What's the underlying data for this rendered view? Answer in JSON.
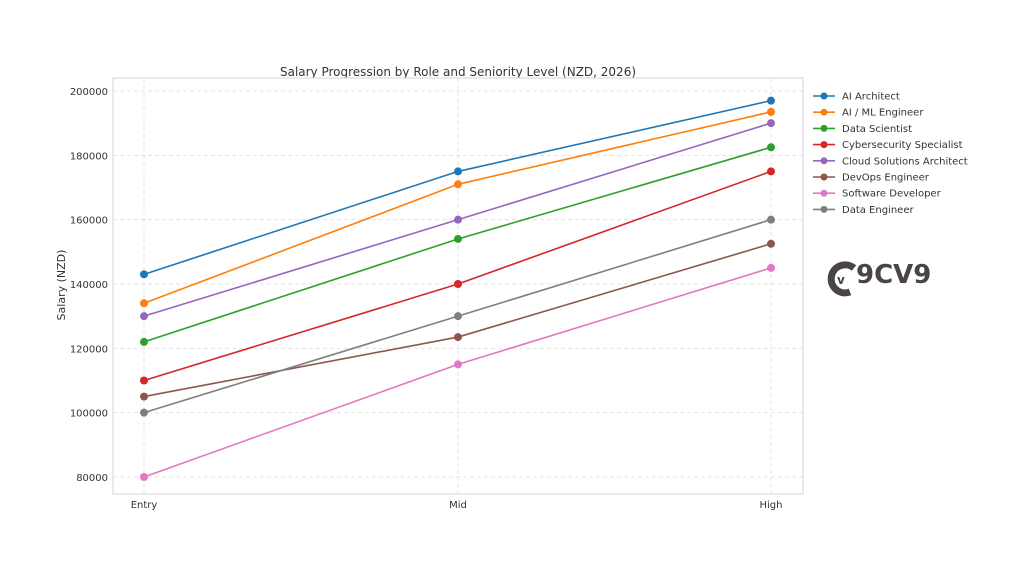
{
  "chart_data": {
    "type": "line",
    "title": "Salary Progression by Role and Seniority Level (NZD, 2026)",
    "xlabel": "",
    "ylabel": "Salary (NZD)",
    "categories": [
      "Entry",
      "Mid",
      "High"
    ],
    "ylim": [
      76000,
      202000
    ],
    "yticks": [
      80000,
      100000,
      120000,
      140000,
      160000,
      180000,
      200000
    ],
    "grid": true,
    "legend": "right",
    "series": [
      {
        "name": "AI Architect",
        "color": "#1f77b4",
        "values": [
          143000,
          175000,
          197000
        ]
      },
      {
        "name": "AI / ML Engineer",
        "color": "#ff7f0e",
        "values": [
          134000,
          171000,
          193500
        ]
      },
      {
        "name": "Data Scientist",
        "color": "#2ca02c",
        "values": [
          122000,
          154000,
          182500
        ]
      },
      {
        "name": "Cybersecurity Specialist",
        "color": "#d62728",
        "values": [
          110000,
          140000,
          175000
        ]
      },
      {
        "name": "Cloud Solutions Architect",
        "color": "#9467bd",
        "values": [
          130000,
          160000,
          190000
        ]
      },
      {
        "name": "DevOps Engineer",
        "color": "#8c564b",
        "values": [
          105000,
          123500,
          152500
        ]
      },
      {
        "name": "Software Developer",
        "color": "#e377c2",
        "values": [
          80000,
          115000,
          145000
        ]
      },
      {
        "name": "Data Engineer",
        "color": "#7f7f7f",
        "values": [
          100000,
          130000,
          160000
        ]
      }
    ]
  },
  "logo": {
    "text": "9CV9"
  }
}
